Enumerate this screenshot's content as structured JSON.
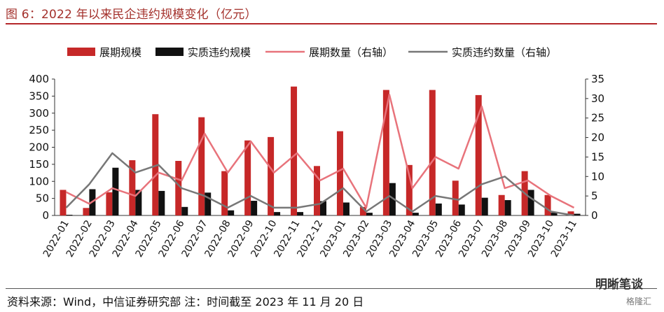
{
  "header": {
    "title": "图 6：2022 年以来民企违约规模变化（亿元）"
  },
  "footer": {
    "source": "资料来源：Wind，中信证券研究部  注：时间截至 2023 年 11 月 20 日",
    "watermark": "明晰笔谈",
    "watermark2": "格隆汇"
  },
  "chart_data": {
    "type": "bar",
    "categories": [
      "2022-01",
      "2022-02",
      "2022-03",
      "2022-04",
      "2022-05",
      "2022-06",
      "2022-07",
      "2022-08",
      "2022-09",
      "2022-10",
      "2022-11",
      "2022-12",
      "2023-01",
      "2023-02",
      "2023-03",
      "2023-04",
      "2023-05",
      "2023-06",
      "2023-07",
      "2023-08",
      "2023-09",
      "2023-10",
      "2023-11"
    ],
    "ylim": [
      0,
      400
    ],
    "yticks": [
      0,
      50,
      100,
      150,
      200,
      250,
      300,
      350,
      400
    ],
    "y2lim": [
      0,
      35
    ],
    "y2ticks": [
      0,
      5,
      10,
      15,
      20,
      25,
      30,
      35
    ],
    "legend_position": "top",
    "series": [
      {
        "name": "展期规模",
        "type": "bar",
        "axis": "left",
        "color": "#c62828",
        "values": [
          75,
          22,
          68,
          162,
          297,
          160,
          288,
          130,
          220,
          230,
          378,
          145,
          247,
          25,
          368,
          148,
          368,
          102,
          353,
          60,
          130,
          60,
          12
        ]
      },
      {
        "name": "实质违约规模",
        "type": "bar",
        "axis": "left",
        "color": "#111111",
        "values": [
          2,
          77,
          140,
          75,
          72,
          25,
          67,
          15,
          43,
          10,
          10,
          42,
          38,
          8,
          95,
          8,
          35,
          32,
          52,
          45,
          75,
          8,
          5
        ]
      },
      {
        "name": "展期数量（右轴）",
        "type": "line",
        "axis": "right",
        "color": "#e8737b",
        "values": [
          6,
          3,
          7,
          5,
          11,
          9,
          21,
          11,
          19,
          11,
          16,
          9,
          12,
          2,
          31,
          7,
          15,
          12,
          28,
          7,
          9,
          5,
          2
        ]
      },
      {
        "name": "实质违约数量（右轴）",
        "type": "line",
        "axis": "right",
        "color": "#777777",
        "values": [
          2,
          8,
          16,
          11,
          13,
          7,
          5,
          2,
          5,
          2,
          2,
          3,
          7,
          1,
          5,
          1,
          5,
          4,
          8,
          10,
          5,
          1,
          0
        ]
      }
    ]
  }
}
